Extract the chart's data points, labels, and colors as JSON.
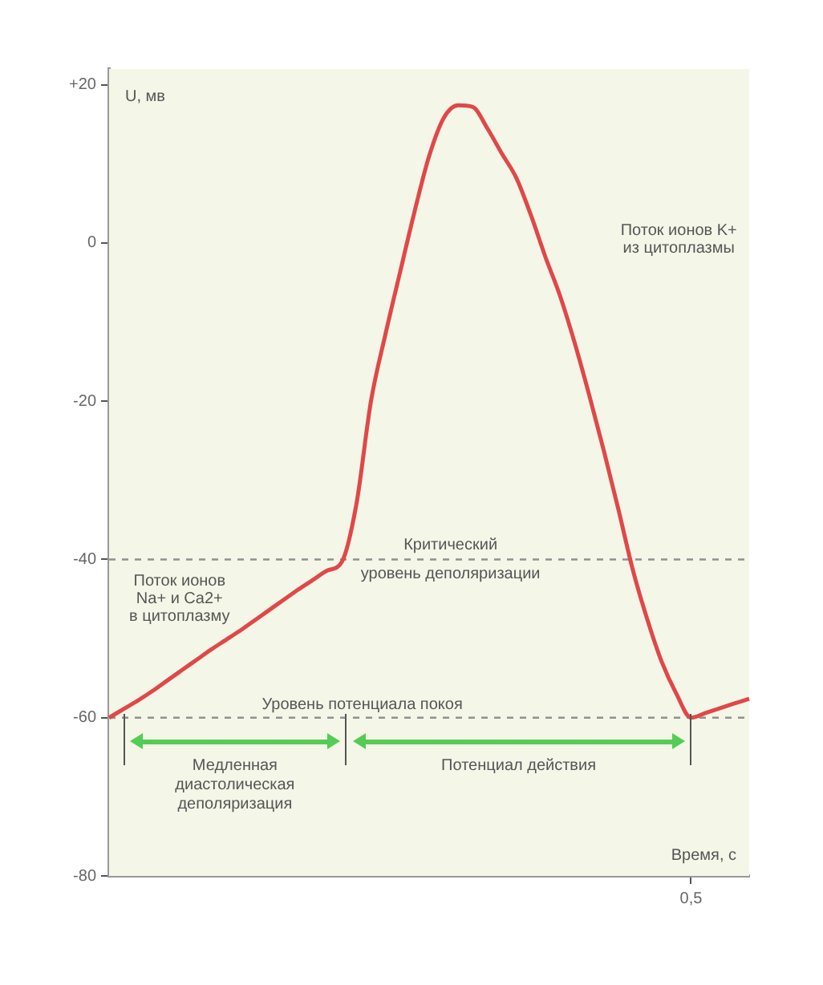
{
  "chart_data": {
    "type": "line",
    "ylabel": "U, мв",
    "xlabel": "Время, с",
    "categories": [
      null,
      null,
      null,
      null,
      null,
      null,
      null,
      null,
      null,
      null,
      null,
      null,
      null,
      null,
      null,
      null,
      null,
      null,
      null,
      null,
      null,
      null,
      null,
      null,
      null,
      null,
      null,
      null,
      null,
      null,
      null,
      null,
      null,
      null,
      null,
      null,
      null,
      null,
      null,
      null,
      "0,5",
      null,
      null,
      null,
      null
    ],
    "series": [
      {
        "color": "#e04848",
        "values": [
          -60,
          -58.9,
          -57.8,
          -56.6,
          -55.3,
          -54,
          -52.7,
          -51.4,
          -50.2,
          -49,
          -47.7,
          -46.4,
          -45.1,
          -43.8,
          -42.6,
          -41.4,
          -40.3,
          -33,
          -20,
          -11.5,
          -3.7,
          4,
          11,
          15.8,
          17.4,
          17.2,
          14.5,
          11.3,
          8.2,
          3.5,
          -1.8,
          -6.7,
          -12.6,
          -19.2,
          -26.2,
          -33.6,
          -41.3,
          -47.6,
          -53,
          -57,
          -60,
          -59.4,
          -58.8,
          -58.2,
          -57.6
        ]
      }
    ],
    "ylim": [
      -80,
      22
    ],
    "yticks": [
      {
        "value": -80,
        "label": "-80"
      },
      {
        "value": -60,
        "label": "-60"
      },
      {
        "value": -40,
        "label": "-40"
      },
      {
        "value": -20,
        "label": "-20"
      },
      {
        "value": 0,
        "label": "0"
      },
      {
        "value": 20,
        "label": "+20"
      }
    ],
    "legend": false,
    "marker": "none",
    "line_style": "solid",
    "ref_lines": [
      {
        "axis": "y",
        "value": -40,
        "label": "Критический\nуровень деполяризации",
        "color": "#909090",
        "line_style": "dashed"
      },
      {
        "axis": "y",
        "value": -60,
        "label": "Уровень потенциала покоя",
        "color": "#909090",
        "line_style": "dashed"
      }
    ],
    "annotations": [
      "Поток ионов\nNa+ и Ca2+\nв цитоплазму",
      "Поток ионов K+\nиз цитоплазмы",
      "Медленная\nдиастолическая\nдеполяризация",
      "Потенциал действия"
    ]
  }
}
